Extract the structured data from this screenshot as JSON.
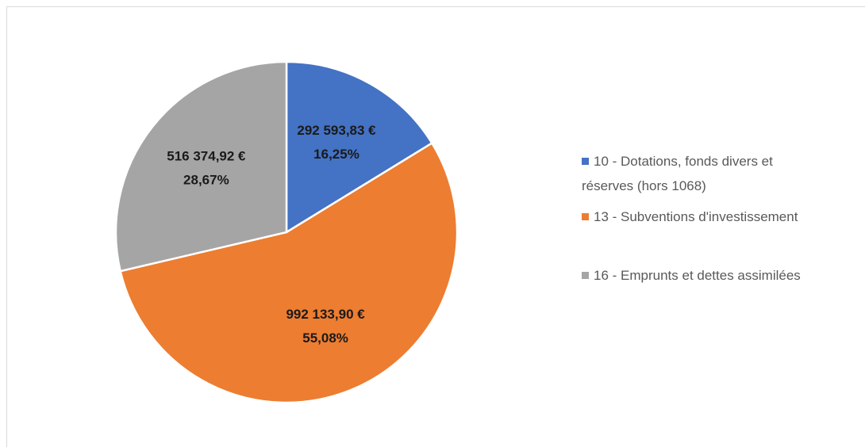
{
  "chart_data": {
    "type": "pie",
    "categories": [
      "10 - Dotations, fonds divers et réserves (hors 1068)",
      "13 - Subventions d'investissement",
      "16 - Emprunts et dettes assimilées"
    ],
    "values": [
      292593.83,
      992133.9,
      516374.92
    ],
    "value_labels": [
      "292 593,83 €",
      "992 133,90 €",
      "516 374,92 €"
    ],
    "percentages": [
      16.25,
      55.08,
      28.67
    ],
    "percentage_labels": [
      "16,25%",
      "55,08%",
      "28,67%"
    ],
    "colors": [
      "#4472c4",
      "#ed7d31",
      "#a5a5a5"
    ],
    "legend": "right"
  }
}
